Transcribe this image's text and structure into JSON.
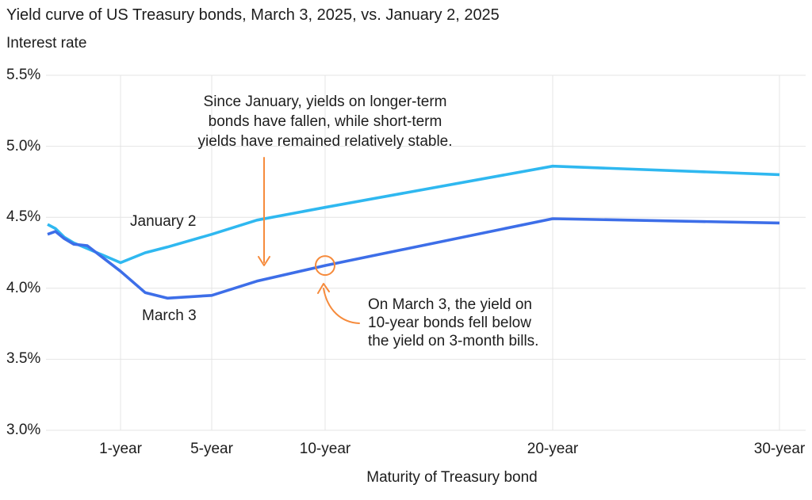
{
  "title": "Yield curve of US Treasury bonds, March 3, 2025, vs. January 2, 2025",
  "subtitle": "Interest rate",
  "colors": {
    "january": "#2fb8f0",
    "march": "#3d6ee8",
    "accent_orange": "#f68b3c",
    "text": "#1d1d1d",
    "grid": "#e4e4e4"
  },
  "chart_data": {
    "type": "line",
    "title": "Yield curve of US Treasury bonds, March 3, 2025, vs. January 2, 2025",
    "xlabel": "Maturity of Treasury bond",
    "ylabel": "Interest rate",
    "ylim": [
      3.0,
      5.5
    ],
    "grid": "on",
    "x_ticks": [
      "1-year",
      "5-year",
      "10-year",
      "20-year",
      "30-year"
    ],
    "y_ticks": {
      "labels": [
        "5.5%",
        "5.0%",
        "4.5%",
        "4.0%",
        "3.5%",
        "3.0%"
      ],
      "values": [
        5.5,
        5.0,
        4.5,
        4.0,
        3.5,
        3.0
      ]
    },
    "series": [
      {
        "name": "January 2",
        "color_key": "january",
        "points": [
          {
            "maturity": "1-month",
            "yield": 4.45
          },
          {
            "maturity": "2-month",
            "yield": 4.42
          },
          {
            "maturity": "3-month",
            "yield": 4.36
          },
          {
            "maturity": "4-month",
            "yield": 4.32
          },
          {
            "maturity": "6-month",
            "yield": 4.28
          },
          {
            "maturity": "1-year",
            "yield": 4.18
          },
          {
            "maturity": "2-year",
            "yield": 4.25
          },
          {
            "maturity": "3-year",
            "yield": 4.29
          },
          {
            "maturity": "5-year",
            "yield": 4.38
          },
          {
            "maturity": "7-year",
            "yield": 4.48
          },
          {
            "maturity": "10-year",
            "yield": 4.57
          },
          {
            "maturity": "20-year",
            "yield": 4.86
          },
          {
            "maturity": "30-year",
            "yield": 4.8
          }
        ]
      },
      {
        "name": "March 3",
        "color_key": "march",
        "points": [
          {
            "maturity": "1-month",
            "yield": 4.38
          },
          {
            "maturity": "2-month",
            "yield": 4.4
          },
          {
            "maturity": "3-month",
            "yield": 4.35
          },
          {
            "maturity": "4-month",
            "yield": 4.31
          },
          {
            "maturity": "6-month",
            "yield": 4.3
          },
          {
            "maturity": "1-year",
            "yield": 4.12
          },
          {
            "maturity": "2-year",
            "yield": 3.97
          },
          {
            "maturity": "3-year",
            "yield": 3.93
          },
          {
            "maturity": "5-year",
            "yield": 3.95
          },
          {
            "maturity": "7-year",
            "yield": 4.05
          },
          {
            "maturity": "10-year",
            "yield": 4.16
          },
          {
            "maturity": "20-year",
            "yield": 4.49
          },
          {
            "maturity": "30-year",
            "yield": 4.46
          }
        ]
      }
    ]
  },
  "annotations": {
    "since_january": {
      "text": "Since January, yields on longer-term\nbonds have fallen, while short-term\nyields have remained relatively stable."
    },
    "march_circle": {
      "text": "On March 3, the yield on\n10-year bonds fell below\nthe yield on 3-month bills.",
      "highlight": {
        "series": "March 3",
        "maturity": "10-year",
        "yield": 4.16
      }
    }
  }
}
